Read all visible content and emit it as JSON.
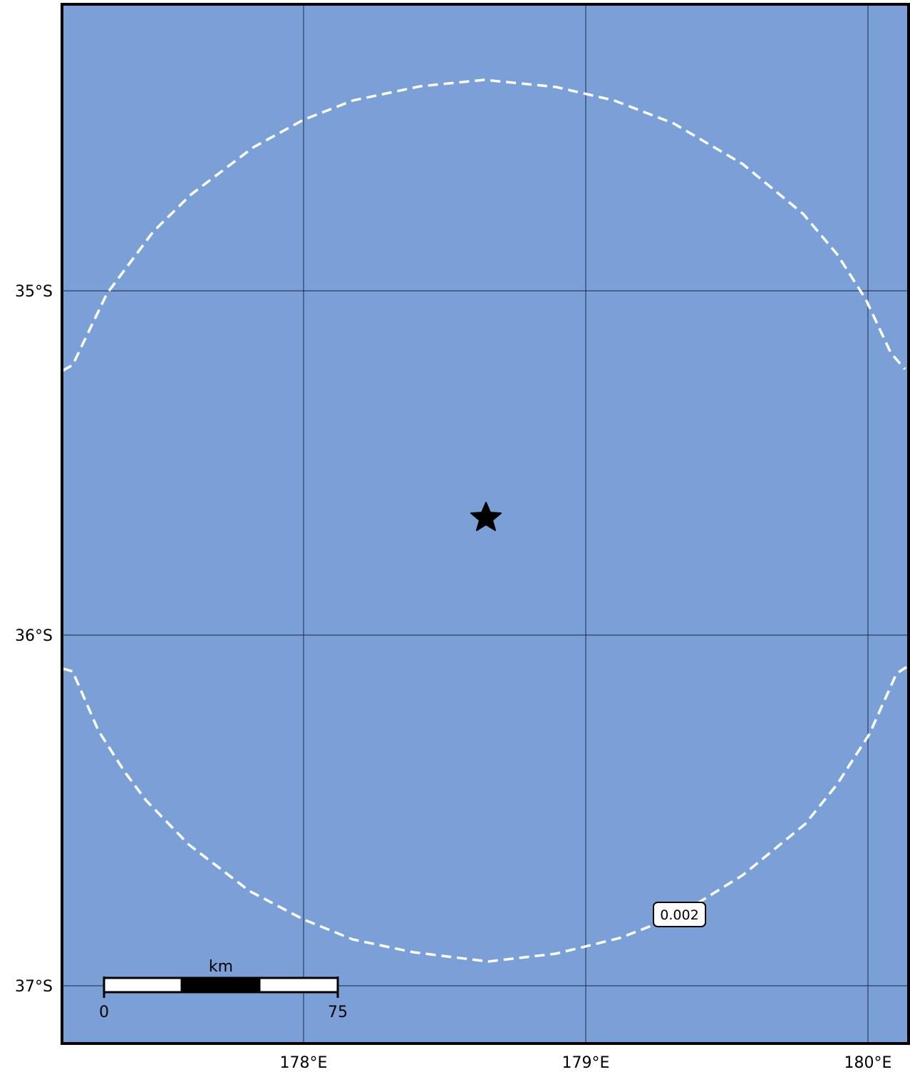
{
  "map": {
    "colors": {
      "ocean": "#7ba0d8",
      "gridline": "#1f2d4f",
      "contour": "#ffffff",
      "frame": "#000000",
      "epicenter": "#000000"
    },
    "lon_ticks": [
      {
        "value": 178,
        "label": "178°E"
      },
      {
        "value": 179,
        "label": "179°E"
      },
      {
        "value": 180,
        "label": "180°E"
      }
    ],
    "lat_ticks": [
      {
        "value": -35,
        "label": "35°S"
      },
      {
        "value": -36,
        "label": "36°S"
      },
      {
        "value": -37,
        "label": "37°S"
      }
    ],
    "epicenter": {
      "icon": "star-icon",
      "lon": 178.64,
      "lat": -35.66
    },
    "contour": {
      "value_label": "0.002",
      "style": "dashed",
      "label_lon": 179.33,
      "label_lat": -36.81
    },
    "scale_bar": {
      "unit_label": "km",
      "start_label": "0",
      "end_label": "75",
      "length_km": 75
    }
  }
}
